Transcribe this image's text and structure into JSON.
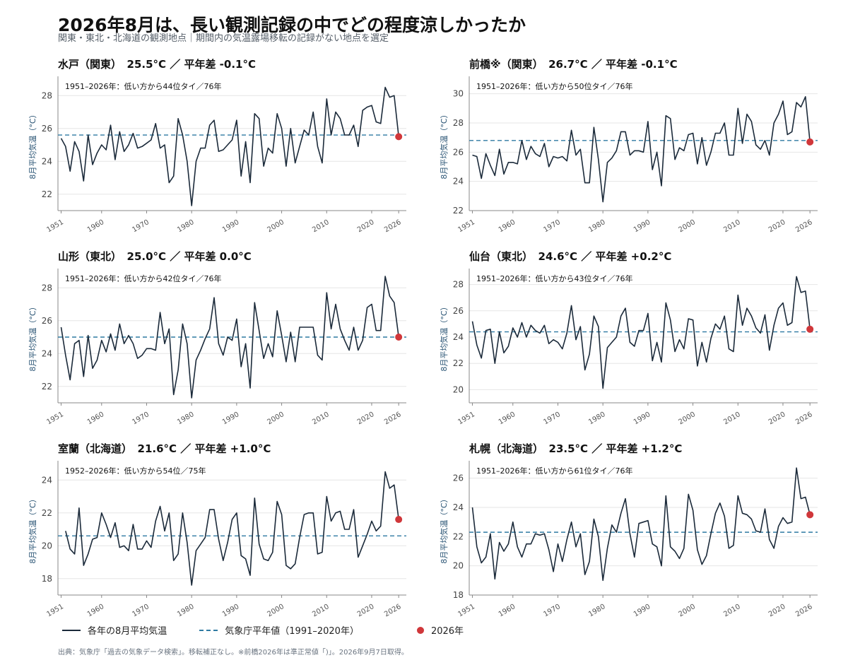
{
  "header": {
    "title": "2026年8月は、長い観測記録の中でどの程度涼しかったか",
    "subtitle": "関東・東北・北海道の観測地点｜期間内の気温露場移転の記録がない地点を選定"
  },
  "legend": {
    "line_label": "各年の8月平均気温",
    "normal_label": "気象庁平年値（1991–2020年）",
    "dot_label": "2026年"
  },
  "source": "出典：気象庁「過去の気象データ検索」。移転補正なし。※前橋2026年は準正常値「)」。2026年9月7日取得。",
  "colors": {
    "line": "#1b2a3a",
    "normal": "#2f7aa2",
    "highlight": "#d0373a",
    "grid": "#e6e6e6"
  },
  "chart_data": [
    {
      "type": "line",
      "title": "水戸（関東）　25.5°C ／ 平年差 -0.1°C",
      "annotation": "1951–2026年：低い方から44位タイ／76年",
      "ylabel": "8月平均気温（°C）",
      "ylim": [
        21,
        29
      ],
      "yticks": [
        22,
        24,
        26,
        28
      ],
      "xticks": [
        1951,
        1960,
        1970,
        1980,
        1990,
        2000,
        2010,
        2020,
        2026
      ],
      "normal": 25.6,
      "highlight_year": 2026,
      "highlight_value": 25.5,
      "series": [
        {
          "x_start": 1951,
          "values": [
            25.4,
            24.9,
            23.4,
            25.2,
            24.6,
            22.8,
            25.6,
            23.8,
            24.5,
            25.0,
            24.7,
            26.2,
            24.1,
            25.8,
            24.6,
            25.0,
            25.7,
            24.8,
            24.9,
            25.1,
            25.3,
            26.3,
            24.8,
            25.0,
            22.7,
            23.1,
            26.6,
            25.6,
            24.0,
            21.3,
            24.0,
            24.8,
            24.8,
            26.2,
            26.5,
            24.6,
            24.7,
            25.0,
            25.3,
            26.5,
            23.1,
            25.2,
            22.7,
            26.9,
            26.6,
            23.7,
            24.8,
            24.5,
            26.9,
            26.0,
            23.7,
            26.0,
            23.9,
            24.9,
            25.9,
            25.6,
            27.0,
            24.9,
            23.9,
            27.8,
            25.6,
            27.0,
            26.6,
            25.6,
            25.6,
            26.2,
            24.9,
            27.1,
            27.3,
            27.4,
            26.4,
            26.3,
            28.5,
            27.9,
            28.0,
            25.5
          ]
        }
      ]
    },
    {
      "type": "line",
      "title": "前橋※（関東）　26.7°C ／ 平年差 -0.1°C",
      "annotation": "1951–2026年：低い方から50位タイ／76年",
      "ylabel": "8月平均気温（°C）",
      "ylim": [
        22,
        31
      ],
      "yticks": [
        22,
        24,
        26,
        28,
        30
      ],
      "xticks": [
        1951,
        1960,
        1970,
        1980,
        1990,
        2000,
        2010,
        2020,
        2026
      ],
      "normal": 26.8,
      "highlight_year": 2026,
      "highlight_value": 26.7,
      "series": [
        {
          "x_start": 1951,
          "values": [
            25.8,
            25.7,
            24.2,
            25.9,
            25.1,
            24.4,
            26.2,
            24.5,
            25.3,
            25.3,
            25.2,
            26.8,
            25.5,
            26.4,
            25.9,
            25.7,
            26.6,
            25.0,
            25.7,
            25.6,
            25.7,
            25.4,
            27.5,
            25.8,
            26.2,
            23.9,
            23.9,
            27.7,
            25.5,
            22.6,
            25.3,
            25.6,
            26.1,
            27.4,
            27.4,
            25.8,
            26.1,
            26.1,
            26.0,
            28.1,
            24.8,
            26.0,
            23.7,
            28.5,
            28.3,
            25.5,
            26.3,
            26.1,
            27.2,
            27.3,
            25.2,
            27.0,
            25.1,
            26.0,
            27.3,
            27.3,
            28.0,
            25.8,
            25.8,
            29.0,
            26.6,
            28.6,
            28.1,
            26.5,
            26.2,
            26.8,
            25.8,
            28.0,
            28.6,
            29.5,
            27.2,
            27.4,
            29.4,
            29.1,
            29.8,
            26.7
          ]
        }
      ]
    },
    {
      "type": "line",
      "title": "山形（東北）　25.0°C ／ 平年差 0.0°C",
      "annotation": "1951–2026年：低い方から42位タイ／76年",
      "ylabel": "8月平均気温（°C）",
      "ylim": [
        21,
        29
      ],
      "yticks": [
        22,
        24,
        26,
        28
      ],
      "xticks": [
        1951,
        1960,
        1970,
        1980,
        1990,
        2000,
        2010,
        2020,
        2026
      ],
      "normal": 25.0,
      "highlight_year": 2026,
      "highlight_value": 25.0,
      "series": [
        {
          "x_start": 1951,
          "values": [
            25.6,
            23.9,
            22.4,
            24.6,
            24.8,
            22.6,
            25.1,
            23.1,
            23.6,
            24.8,
            24.1,
            25.2,
            24.2,
            25.8,
            24.6,
            25.1,
            24.6,
            23.7,
            23.9,
            24.3,
            24.3,
            24.2,
            26.5,
            24.6,
            25.5,
            21.5,
            23.0,
            25.8,
            24.6,
            21.3,
            23.6,
            24.2,
            24.9,
            25.5,
            27.4,
            24.6,
            23.9,
            25.0,
            24.8,
            26.1,
            23.2,
            24.6,
            21.9,
            27.1,
            25.4,
            23.7,
            24.6,
            23.8,
            26.6,
            25.1,
            23.5,
            25.3,
            23.5,
            25.6,
            25.6,
            25.6,
            25.6,
            23.9,
            23.6,
            27.7,
            25.5,
            27.0,
            25.5,
            24.8,
            24.2,
            25.6,
            24.2,
            24.8,
            26.8,
            27.0,
            25.4,
            25.4,
            28.7,
            27.5,
            27.1,
            25.0
          ]
        }
      ]
    },
    {
      "type": "line",
      "title": "仙台（東北）　24.6°C ／ 平年差 +0.2°C",
      "annotation": "1951–2026年：低い方から43位タイ／76年",
      "ylabel": "8月平均気温（°C）",
      "ylim": [
        19,
        29
      ],
      "yticks": [
        20,
        22,
        24,
        26,
        28
      ],
      "xticks": [
        1951,
        1960,
        1970,
        1980,
        1990,
        2000,
        2010,
        2020,
        2026
      ],
      "normal": 24.4,
      "highlight_year": 2026,
      "highlight_value": 24.6,
      "series": [
        {
          "x_start": 1951,
          "values": [
            25.2,
            23.4,
            22.4,
            24.5,
            24.6,
            22.0,
            24.4,
            22.8,
            23.3,
            24.7,
            24.0,
            25.1,
            24.0,
            24.9,
            24.5,
            24.3,
            24.9,
            23.5,
            23.8,
            23.6,
            23.1,
            24.3,
            26.4,
            23.8,
            24.8,
            21.5,
            22.7,
            25.6,
            24.8,
            20.1,
            23.2,
            23.6,
            24.0,
            25.6,
            26.2,
            23.6,
            23.3,
            24.5,
            24.5,
            25.8,
            22.2,
            23.6,
            22.1,
            26.6,
            25.3,
            22.9,
            23.8,
            23.1,
            25.4,
            25.3,
            21.8,
            23.6,
            22.1,
            23.9,
            25.0,
            24.6,
            25.6,
            23.1,
            22.9,
            27.2,
            24.9,
            26.2,
            25.6,
            24.7,
            24.3,
            25.7,
            23.0,
            24.9,
            26.2,
            26.6,
            24.9,
            25.1,
            28.6,
            27.4,
            27.5,
            24.6
          ]
        }
      ]
    },
    {
      "type": "line",
      "title": "室蘭（北海道）　21.6°C ／ 平年差 +1.0°C",
      "annotation": "1952–2026年：低い方から54位／75年",
      "ylabel": "8月平均気温（°C）",
      "ylim": [
        17,
        25
      ],
      "yticks": [
        18,
        20,
        22,
        24
      ],
      "xticks": [
        1951,
        1960,
        1970,
        1980,
        1990,
        2000,
        2010,
        2020,
        2026
      ],
      "normal": 20.6,
      "highlight_year": 2026,
      "highlight_value": 21.6,
      "series": [
        {
          "x_start": 1952,
          "values": [
            20.9,
            19.8,
            19.5,
            22.3,
            18.8,
            19.5,
            20.4,
            20.5,
            22.0,
            21.3,
            20.5,
            21.4,
            19.9,
            20.0,
            19.7,
            21.3,
            19.8,
            19.8,
            20.3,
            19.9,
            21.5,
            22.4,
            20.9,
            22.0,
            19.1,
            19.5,
            22.0,
            20.2,
            17.6,
            19.7,
            20.1,
            20.5,
            22.2,
            22.2,
            20.4,
            19.1,
            20.2,
            21.6,
            22.0,
            19.4,
            19.2,
            18.2,
            22.9,
            20.1,
            19.2,
            19.1,
            19.6,
            22.7,
            21.9,
            18.8,
            18.6,
            18.9,
            20.5,
            21.9,
            22.0,
            22.0,
            19.5,
            19.6,
            23.0,
            21.5,
            22.0,
            22.1,
            21.0,
            21.0,
            22.2,
            19.3,
            20.0,
            20.7,
            21.5,
            20.9,
            21.2,
            24.5,
            23.5,
            23.7,
            21.6
          ]
        }
      ]
    },
    {
      "type": "line",
      "title": "札幌（北海道）　23.5°C ／ 平年差 +1.2°C",
      "annotation": "1951–2026年：低い方から61位タイ／76年",
      "ylabel": "8月平均気温（°C）",
      "ylim": [
        18,
        27
      ],
      "yticks": [
        18,
        20,
        22,
        24,
        26
      ],
      "xticks": [
        1951,
        1960,
        1970,
        1980,
        1990,
        2000,
        2010,
        2020,
        2026
      ],
      "normal": 22.3,
      "highlight_year": 2026,
      "highlight_value": 23.5,
      "series": [
        {
          "x_start": 1951,
          "values": [
            24.0,
            21.3,
            20.2,
            20.6,
            22.2,
            19.1,
            21.6,
            21.0,
            21.5,
            23.0,
            21.3,
            20.6,
            21.5,
            21.5,
            22.2,
            22.1,
            22.2,
            21.1,
            19.6,
            21.5,
            20.3,
            21.8,
            23.0,
            21.3,
            22.2,
            19.4,
            20.3,
            23.2,
            22.0,
            19.0,
            21.2,
            22.8,
            22.3,
            23.6,
            24.6,
            22.2,
            20.6,
            22.9,
            23.0,
            23.1,
            21.5,
            21.3,
            20.0,
            24.8,
            21.3,
            21.0,
            20.5,
            21.2,
            24.9,
            23.8,
            21.1,
            20.1,
            20.7,
            22.2,
            23.6,
            24.3,
            23.4,
            21.2,
            21.4,
            24.8,
            23.6,
            23.5,
            23.2,
            22.4,
            22.3,
            23.9,
            21.8,
            21.2,
            22.7,
            23.3,
            22.9,
            23.0,
            26.7,
            24.6,
            24.7,
            23.5
          ]
        }
      ]
    }
  ]
}
